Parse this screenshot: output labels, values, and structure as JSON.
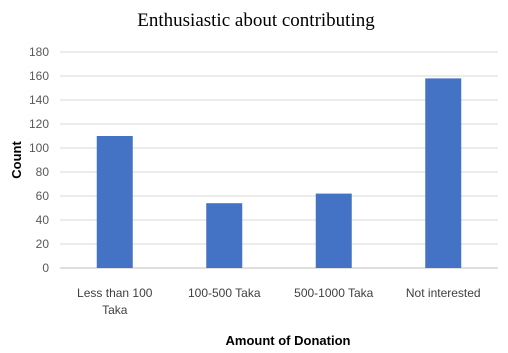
{
  "chart_data": {
    "type": "bar",
    "title": "Enthusiastic about contributing",
    "xlabel": "Amount of Donation",
    "ylabel": "Count",
    "categories": [
      [
        "Less than 100",
        "Taka"
      ],
      [
        "100-500 Taka"
      ],
      [
        "500-1000 Taka"
      ],
      [
        "Not interested"
      ]
    ],
    "values": [
      110,
      54,
      62,
      158
    ],
    "ylim": [
      0,
      180
    ],
    "yticks": [
      0,
      20,
      40,
      60,
      80,
      100,
      120,
      140,
      160,
      180
    ],
    "grid": true,
    "bar_color": "#4472C4"
  }
}
